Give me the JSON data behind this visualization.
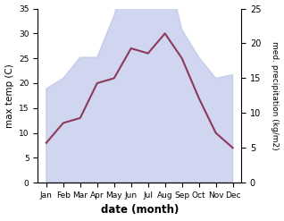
{
  "months": [
    "Jan",
    "Feb",
    "Mar",
    "Apr",
    "May",
    "Jun",
    "Jul",
    "Aug",
    "Sep",
    "Oct",
    "Nov",
    "Dec"
  ],
  "max_temp": [
    8,
    12,
    13,
    20,
    21,
    27,
    26,
    30,
    25,
    17,
    10,
    7
  ],
  "precipitation": [
    13.5,
    15,
    18,
    18,
    24,
    33,
    28,
    32,
    22,
    18,
    15,
    15.5
  ],
  "temp_color": "#8B3A5A",
  "precip_fill_color": "#bcc5ea",
  "xlabel": "date (month)",
  "ylabel_left": "max temp (C)",
  "ylabel_right": "med. precipitation (kg/m2)",
  "ylim_left": [
    0,
    35
  ],
  "ylim_right": [
    0,
    25
  ],
  "yticks_left": [
    0,
    5,
    10,
    15,
    20,
    25,
    30,
    35
  ],
  "yticks_right": [
    0,
    5,
    10,
    15,
    20,
    25
  ],
  "precip_scale_factor": 1.4,
  "background_color": "#ffffff"
}
